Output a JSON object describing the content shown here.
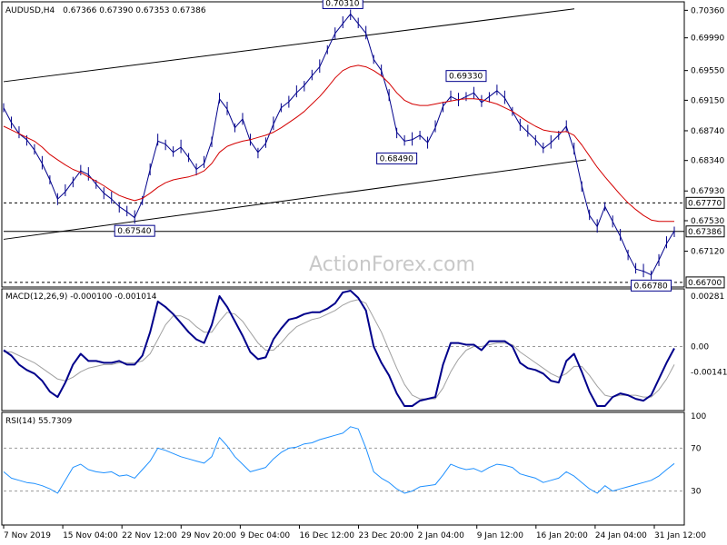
{
  "header": {
    "symbol": "AUDUSD,H4",
    "ohlc": "0.67366 0.67390 0.67353 0.67386"
  },
  "watermark": "ActionForex.com",
  "chart_data": [
    {
      "type": "line",
      "panel": "price",
      "title": "AUDUSD,H4",
      "ylim": [
        0.6665,
        0.7045
      ],
      "y_ticks": [
        "0.70360",
        "0.69990",
        "0.69550",
        "0.69150",
        "0.68740",
        "0.68340",
        "0.67930",
        "0.67530",
        "0.67120"
      ],
      "series": [
        {
          "values": [
            0.6905,
            0.6885,
            0.687,
            0.6862,
            0.6848,
            0.683,
            0.6808,
            0.6782,
            0.6792,
            0.6806,
            0.682,
            0.6815,
            0.6802,
            0.679,
            0.6782,
            0.6772,
            0.6765,
            0.6757,
            0.678,
            0.6822,
            0.686,
            0.6856,
            0.6845,
            0.6852,
            0.6838,
            0.6822,
            0.683,
            0.686,
            0.6917,
            0.6903,
            0.6878,
            0.689,
            0.686,
            0.6845,
            0.6857,
            0.6883,
            0.6905,
            0.6913,
            0.6925,
            0.6935,
            0.6948,
            0.696,
            0.6983,
            0.7005,
            0.7018,
            0.7031,
            0.7018,
            0.7005,
            0.697,
            0.6955,
            0.692,
            0.6872,
            0.686,
            0.6862,
            0.6868,
            0.6858,
            0.6878,
            0.6907,
            0.692,
            0.6915,
            0.692,
            0.6925,
            0.6912,
            0.692,
            0.6928,
            0.6918,
            0.69,
            0.6882,
            0.6872,
            0.6862,
            0.685,
            0.6858,
            0.6868,
            0.688,
            0.6848,
            0.68,
            0.676,
            0.6745,
            0.6772,
            0.6752,
            0.6732,
            0.6708,
            0.6688,
            0.6685,
            0.668,
            0.67,
            0.6722,
            0.6739
          ]
        },
        {
          "name": "MA",
          "values": [
            0.688,
            0.6875,
            0.687,
            0.6865,
            0.686,
            0.6852,
            0.6842,
            0.6835,
            0.6828,
            0.6822,
            0.6818,
            0.6812,
            0.6806,
            0.68,
            0.6793,
            0.6787,
            0.6783,
            0.678,
            0.6783,
            0.679,
            0.6798,
            0.6804,
            0.6808,
            0.681,
            0.6812,
            0.6815,
            0.682,
            0.683,
            0.6845,
            0.6853,
            0.6857,
            0.686,
            0.6862,
            0.6865,
            0.6868,
            0.6872,
            0.6878,
            0.6885,
            0.6892,
            0.69,
            0.691,
            0.692,
            0.6932,
            0.6945,
            0.6955,
            0.696,
            0.6962,
            0.696,
            0.6955,
            0.6948,
            0.6938,
            0.6925,
            0.6915,
            0.691,
            0.6908,
            0.6908,
            0.691,
            0.6912,
            0.6914,
            0.6916,
            0.6917,
            0.6917,
            0.6916,
            0.6913,
            0.691,
            0.6905,
            0.69,
            0.6893,
            0.6886,
            0.688,
            0.6875,
            0.6873,
            0.6872,
            0.6873,
            0.6868,
            0.6855,
            0.684,
            0.6825,
            0.6812,
            0.68,
            0.6788,
            0.6777,
            0.6768,
            0.676,
            0.6754,
            0.6752,
            0.6752,
            0.6752
          ]
        }
      ],
      "levels": [
        {
          "label": "0.67770",
          "value": 0.6777,
          "style": "dashed"
        },
        {
          "label": "0.67386",
          "value": 0.67386,
          "style": "solid"
        },
        {
          "label": "0.66700",
          "value": 0.667,
          "style": "dashed"
        }
      ],
      "annotations": [
        {
          "label": "0.70310",
          "value": 0.7031
        },
        {
          "label": "0.69330",
          "value": 0.6933
        },
        {
          "label": "0.68490",
          "value": 0.6849
        },
        {
          "label": "0.67540",
          "value": 0.6754
        },
        {
          "label": "0.66780",
          "value": 0.6678
        }
      ],
      "colors": {
        "price": "#00008b",
        "ma": "#d40000",
        "channel": "#000000"
      }
    },
    {
      "type": "line",
      "panel": "macd",
      "title": "MACD(12,26,9) -0.000100 -0.001014",
      "ylim": [
        -0.0035,
        0.0031
      ],
      "y_ticks": [
        "0.00281",
        "0.00",
        "-0.00141"
      ],
      "series": [
        {
          "values": [
            -0.0002,
            -0.0005,
            -0.001,
            -0.0013,
            -0.0015,
            -0.0019,
            -0.0025,
            -0.0028,
            -0.002,
            -0.001,
            -0.0004,
            -0.0008,
            -0.0008,
            -0.0009,
            -0.0009,
            -0.0008,
            -0.001,
            -0.001,
            -0.0005,
            0.0008,
            0.0025,
            0.0022,
            0.0018,
            0.0013,
            0.0008,
            0.0004,
            0.0002,
            0.0012,
            0.0028,
            0.0022,
            0.0014,
            0.0006,
            -0.0003,
            -0.0007,
            -0.0006,
            0.0004,
            0.001,
            0.0015,
            0.0016,
            0.0018,
            0.0019,
            0.0019,
            0.0021,
            0.0024,
            0.003,
            0.0031,
            0.0027,
            0.002,
            0.0,
            -0.0009,
            -0.0016,
            -0.0026,
            -0.0033,
            -0.0033,
            -0.003,
            -0.0029,
            -0.0028,
            -0.001,
            0.0002,
            0.0002,
            0.0001,
            0.0001,
            -0.0002,
            0.0003,
            0.0003,
            0.0003,
            0.0,
            -0.0009,
            -0.0012,
            -0.0013,
            -0.0015,
            -0.0019,
            -0.002,
            -0.0008,
            -0.0004,
            -0.0014,
            -0.0025,
            -0.0033,
            -0.0033,
            -0.0028,
            -0.0026,
            -0.0027,
            -0.0029,
            -0.003,
            -0.0027,
            -0.0018,
            -0.0009,
            -0.0001
          ]
        },
        {
          "values": [
            -0.0003,
            -0.0003,
            -0.0005,
            -0.0007,
            -0.0009,
            -0.0012,
            -0.0015,
            -0.0018,
            -0.0019,
            -0.0017,
            -0.0014,
            -0.0012,
            -0.0011,
            -0.001,
            -0.001,
            -0.0009,
            -0.0009,
            -0.0009,
            -0.0008,
            -0.0004,
            0.0004,
            0.0012,
            0.0017,
            0.0017,
            0.0015,
            0.0011,
            0.0008,
            0.0008,
            0.0014,
            0.0019,
            0.0018,
            0.0014,
            0.0008,
            0.0002,
            -0.0002,
            -0.0002,
            0.0002,
            0.0007,
            0.0011,
            0.0013,
            0.0015,
            0.0016,
            0.0018,
            0.002,
            0.0023,
            0.0025,
            0.0026,
            0.0024,
            0.0016,
            0.0008,
            -0.0002,
            -0.0012,
            -0.0021,
            -0.0027,
            -0.0029,
            -0.0029,
            -0.0029,
            -0.0023,
            -0.0014,
            -0.0007,
            -0.0002,
            0.0,
            0.0,
            0.0001,
            0.0002,
            0.0002,
            0.0001,
            -0.0003,
            -0.0006,
            -0.0009,
            -0.0012,
            -0.0015,
            -0.0017,
            -0.0015,
            -0.0011,
            -0.0011,
            -0.0016,
            -0.0022,
            -0.0027,
            -0.0028,
            -0.0027,
            -0.0027,
            -0.0027,
            -0.0028,
            -0.0028,
            -0.0024,
            -0.0018,
            -0.001
          ]
        }
      ],
      "zero_line": 0,
      "colors": {
        "macd": "#00008b",
        "signal": "#a0a0a0"
      }
    },
    {
      "type": "line",
      "panel": "rsi",
      "title": "RSI(14) 55.7309",
      "ylim": [
        0,
        100
      ],
      "y_ticks": [
        "100",
        "70",
        "30"
      ],
      "series": [
        {
          "values": [
            48,
            42,
            40,
            38,
            37,
            35,
            32,
            28,
            40,
            52,
            55,
            50,
            48,
            47,
            48,
            44,
            45,
            42,
            50,
            58,
            70,
            68,
            65,
            62,
            60,
            58,
            56,
            62,
            80,
            72,
            62,
            55,
            48,
            50,
            52,
            60,
            66,
            70,
            71,
            74,
            75,
            78,
            80,
            82,
            84,
            90,
            88,
            70,
            48,
            42,
            38,
            32,
            28,
            30,
            34,
            35,
            36,
            45,
            55,
            52,
            50,
            51,
            48,
            52,
            55,
            54,
            52,
            46,
            44,
            42,
            38,
            40,
            42,
            48,
            44,
            38,
            32,
            28,
            35,
            30,
            32,
            34,
            36,
            38,
            40,
            44,
            50,
            55.7
          ]
        }
      ],
      "levels": [
        70,
        30
      ],
      "colors": {
        "rsi": "#1e90ff"
      }
    }
  ],
  "x_axis": {
    "labels": [
      "7 Nov 2019",
      "15 Nov 04:00",
      "22 Nov 12:00",
      "29 Nov 20:00",
      "9 Dec 04:00",
      "16 Dec 12:00",
      "23 Dec 20:00",
      "2 Jan 04:00",
      "9 Jan 12:00",
      "16 Jan 20:00",
      "24 Jan 04:00",
      "31 Jan 12:00"
    ]
  },
  "macd_header": "MACD(12,26,9) -0.000100 -0.001014",
  "rsi_header": "RSI(14) 55.7309"
}
